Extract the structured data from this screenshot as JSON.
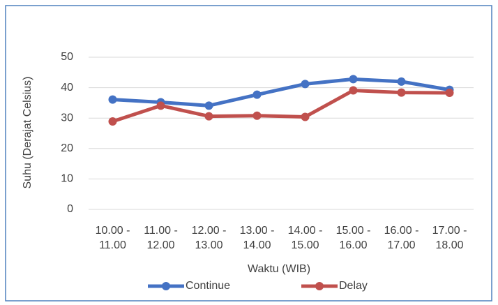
{
  "chart_data": {
    "type": "line",
    "categories": [
      "10.00 - 11.00",
      "11.00 - 12.00",
      "12.00 - 13.00",
      "13.00 - 14.00",
      "14.00 - 15.00",
      "15.00 - 16.00",
      "16.00 - 17.00",
      "17.00 - 18.00"
    ],
    "series": [
      {
        "name": "Continue",
        "color": "#4472c4",
        "values": [
          36.1,
          35.2,
          34.1,
          37.7,
          41.2,
          42.8,
          42.0,
          39.3
        ]
      },
      {
        "name": "Delay",
        "color": "#c0504d",
        "values": [
          28.9,
          34.1,
          30.6,
          30.8,
          30.4,
          39.1,
          38.4,
          38.3
        ]
      }
    ],
    "ylim": [
      0,
      50
    ],
    "yticks": [
      0,
      10,
      20,
      30,
      40,
      50
    ],
    "grid": true,
    "x_label": "Waktu (WIB)",
    "y_label": "Suhu (Derajat Celsius)",
    "legend": "bottom"
  }
}
